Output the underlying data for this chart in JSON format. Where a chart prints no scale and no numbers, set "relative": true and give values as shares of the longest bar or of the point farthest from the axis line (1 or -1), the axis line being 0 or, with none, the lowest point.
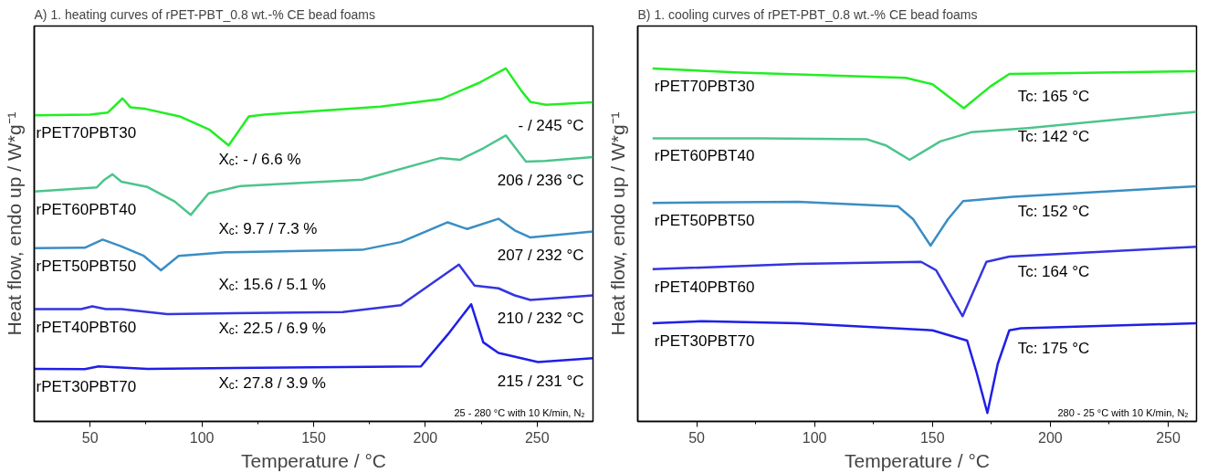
{
  "chart_data": [
    {
      "type": "line",
      "title": "A) 1. heating curves of rPET-PBT_0.8 wt.-% CE bead foams",
      "xlabel": "Temperature / °C",
      "ylabel": "Heat flow, endo up / W*g⁻¹",
      "relative": true,
      "tick_labels": "x",
      "grid": false,
      "legend": false,
      "xlim": [
        25,
        275
      ],
      "xticks": [
        50,
        {
          "value": 75,
          "label": null
        },
        100,
        {
          "value": 125,
          "label": null
        },
        150,
        {
          "value": 175,
          "label": null
        },
        200,
        {
          "value": 225,
          "label": null
        },
        250
      ],
      "series": [
        {
          "name": "rPET70PBT30",
          "color": "#22ee22",
          "x": [
            25,
            50,
            58,
            64.5,
            68,
            75,
            90,
            103.5,
            112,
            121,
            128,
            180,
            207,
            224,
            236,
            243,
            247,
            254,
            275
          ],
          "values": [
            0.867,
            0.869,
            0.875,
            0.915,
            0.89,
            0.885,
            0.864,
            0.826,
            0.782,
            0.864,
            0.869,
            0.892,
            0.913,
            0.959,
            1.0,
            0.936,
            0.905,
            0.897,
            0.904
          ]
        },
        {
          "name": "rPET60PBT40",
          "color": "#4dc48c",
          "x": [
            25,
            53,
            56.5,
            60,
            64,
            75.7,
            87.8,
            95,
            103,
            117.5,
            171.7,
            206.6,
            215.5,
            226,
            236,
            245,
            253.6,
            275
          ],
          "values": [
            0.651,
            0.663,
            0.685,
            0.7,
            0.679,
            0.664,
            0.623,
            0.585,
            0.646,
            0.667,
            0.685,
            0.746,
            0.741,
            0.774,
            0.81,
            0.736,
            0.738,
            0.749
          ]
        },
        {
          "name": "rPET50PBT50",
          "color": "#3a8ec4",
          "x": [
            25,
            47.6,
            55.6,
            63.5,
            74,
            81.7,
            89.6,
            110.6,
            171.7,
            189,
            210,
            218.7,
            232.7,
            240,
            247,
            275
          ],
          "values": [
            0.491,
            0.492,
            0.515,
            0.497,
            0.469,
            0.428,
            0.469,
            0.479,
            0.486,
            0.508,
            0.564,
            0.545,
            0.574,
            0.541,
            0.521,
            0.538
          ]
        },
        {
          "name": "rPET40PBT60",
          "color": "#3535e0",
          "x": [
            25,
            46,
            51,
            57,
            64,
            84.5,
            163,
            189,
            203,
            215,
            222,
            232.7,
            240,
            247,
            275
          ],
          "values": [
            0.318,
            0.318,
            0.326,
            0.318,
            0.318,
            0.304,
            0.31,
            0.329,
            0.391,
            0.444,
            0.385,
            0.377,
            0.357,
            0.344,
            0.357
          ]
        },
        {
          "name": "rPET30PBT70",
          "color": "#1f1fe8",
          "x": [
            25,
            47.6,
            53.8,
            75.7,
            198,
            210,
            220.5,
            225.9,
            232.7,
            250.4,
            275
          ],
          "values": [
            0.149,
            0.148,
            0.156,
            0.149,
            0.156,
            0.246,
            0.332,
            0.224,
            0.194,
            0.168,
            0.179
          ]
        }
      ],
      "annotations": [
        "- / 245 °C",
        "X$_{c}$: - / 6.6 %",
        "206 / 236 °C",
        "X$_{c}$: 9.7 / 7.3 %",
        "207 / 232 °C",
        "X$_{c}$: 15.6 / 5.1 %",
        "210 / 232 °C",
        "X$_{c}$: 22.5 / 6.9 %",
        "215 / 231 °C",
        "X$_{c}$: 27.8 / 3.9 %",
        "25 - 280 °C with 10 K/min, N₂"
      ]
    },
    {
      "type": "line",
      "title": "B) 1. cooling curves of rPET-PBT_0.8 wt.-% CE bead foams",
      "xlabel": "Temperature / °C",
      "ylabel": "Heat flow, endo up / W*g⁻¹",
      "relative": true,
      "tick_labels": "x",
      "grid": false,
      "legend": false,
      "xlim": [
        25,
        262
      ],
      "xticks": [
        50,
        {
          "value": 75,
          "label": null
        },
        100,
        {
          "value": 125,
          "label": null
        },
        150,
        {
          "value": 175,
          "label": null
        },
        200,
        {
          "value": 225,
          "label": null
        },
        250
      ],
      "series": [
        {
          "name": "rPET70PBT30",
          "color": "#22ee22",
          "x": [
            31.3,
            68.7,
            138.7,
            150,
            163.3,
            174.6,
            182.6,
            262
          ],
          "values": [
            1.0,
            0.988,
            0.973,
            0.955,
            0.887,
            0.949,
            0.984,
            0.992
          ]
        },
        {
          "name": "rPET60PBT40",
          "color": "#4dc48c",
          "x": [
            31.3,
            76.8,
            122.3,
            130.5,
            140.3,
            153.3,
            166.4,
            190.6,
            262
          ],
          "values": [
            0.802,
            0.802,
            0.799,
            0.781,
            0.741,
            0.793,
            0.819,
            0.831,
            0.877
          ]
        },
        {
          "name": "rPET50PBT50",
          "color": "#3a8ec4",
          "x": [
            31.3,
            93,
            135.4,
            141.8,
            149.2,
            156.6,
            163,
            184.2,
            262
          ],
          "values": [
            0.619,
            0.622,
            0.609,
            0.573,
            0.498,
            0.573,
            0.624,
            0.636,
            0.666
          ]
        },
        {
          "name": "rPET40PBT60",
          "color": "#3535e0",
          "x": [
            31.3,
            93,
            145.2,
            151.6,
            162.8,
            172.9,
            182.6,
            262
          ],
          "values": [
            0.431,
            0.446,
            0.452,
            0.428,
            0.298,
            0.452,
            0.467,
            0.495
          ]
        },
        {
          "name": "rPET30PBT70",
          "color": "#1f1fe8",
          "x": [
            31.3,
            52.3,
            93,
            150,
            164.7,
            168.7,
            173.3,
            177.7,
            182.6,
            187.5,
            262
          ],
          "values": [
            0.278,
            0.284,
            0.278,
            0.258,
            0.229,
            0.139,
            0.024,
            0.163,
            0.258,
            0.264,
            0.278
          ]
        }
      ],
      "annotations": [
        "Tc: 165 °C",
        "Tc: 142 °C",
        "Tc: 152 °C",
        "Tc: 164 °C",
        "Tc: 175 °C",
        "280 - 25 °C with 10 K/min, N₂"
      ]
    }
  ]
}
